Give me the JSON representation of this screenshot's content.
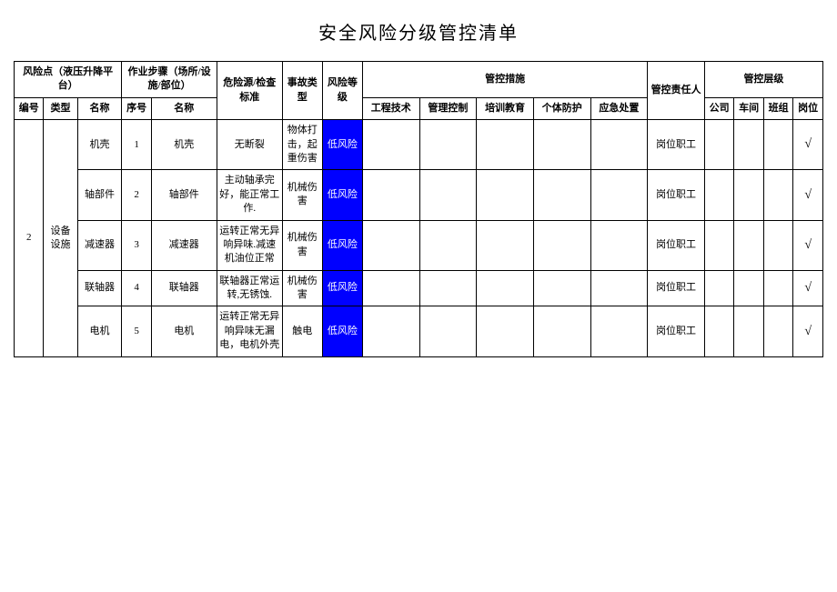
{
  "title": "安全风险分级管控清单",
  "headers": {
    "risk_point_group": "风险点（液压升降平台）",
    "work_step_group": "作业步骤（场所/设施/部位）",
    "hazard_std": "危险源/检查标准",
    "accident_type": "事故类型",
    "risk_level": "风险等级",
    "control_measures_group": "管控措施",
    "responsible": "管控责任人",
    "control_level_group": "管控层级",
    "id": "编号",
    "type": "类型",
    "name": "名称",
    "seq": "序号",
    "step_name": "名称",
    "m_engineering": "工程技术",
    "m_management": "管理控制",
    "m_training": "培训教育",
    "m_ppe": "个体防护",
    "m_emergency": "应急处置",
    "lv_company": "公司",
    "lv_workshop": "车间",
    "lv_team": "班组",
    "lv_post": "岗位"
  },
  "group": {
    "id": "2",
    "type": "设备设施"
  },
  "rows": [
    {
      "name": "机壳",
      "seq": "1",
      "step_name": "机壳",
      "hazard": "无断裂",
      "accident": "物体打击，起重伤害",
      "risk": "低风险",
      "responsible": "岗位职工",
      "lv_company": "",
      "lv_workshop": "",
      "lv_team": "",
      "lv_post": "√"
    },
    {
      "name": "轴部件",
      "seq": "2",
      "step_name": "轴部件",
      "hazard": "主动轴承完好，能正常工作.",
      "accident": "机械伤害",
      "risk": "低风险",
      "responsible": "岗位职工",
      "lv_company": "",
      "lv_workshop": "",
      "lv_team": "",
      "lv_post": "√"
    },
    {
      "name": "减速器",
      "seq": "3",
      "step_name": "减速器",
      "hazard": "运转正常无异响异味.减速机油位正常",
      "accident": "机械伤害",
      "risk": "低风险",
      "responsible": "岗位职工",
      "lv_company": "",
      "lv_workshop": "",
      "lv_team": "",
      "lv_post": "√"
    },
    {
      "name": "联轴器",
      "seq": "4",
      "step_name": "联轴器",
      "hazard": "联轴器正常运转,无锈蚀.",
      "accident": "机械伤害",
      "risk": "低风险",
      "responsible": "岗位职工",
      "lv_company": "",
      "lv_workshop": "",
      "lv_team": "",
      "lv_post": "√"
    },
    {
      "name": "电机",
      "seq": "5",
      "step_name": "电机",
      "hazard": "运转正常无异响异味无漏电，电机外壳",
      "accident": "触电",
      "risk": "低风险",
      "responsible": "岗位职工",
      "lv_company": "",
      "lv_workshop": "",
      "lv_team": "",
      "lv_post": "√"
    }
  ],
  "colors": {
    "risk_bg": "#0000ff",
    "risk_fg": "#ffffff",
    "border": "#000000",
    "page_bg": "#ffffff"
  }
}
